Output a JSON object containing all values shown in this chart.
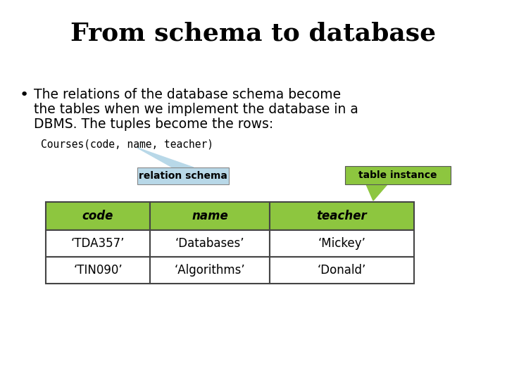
{
  "title": "From schema to database",
  "bullet_lines": [
    "The relations of the database schema become",
    "the tables when we implement the database in a",
    "DBMS. The tuples become the rows:"
  ],
  "code_text": "Courses(code, name, teacher)",
  "label1": "relation schema",
  "label2": "table instance",
  "label1_color": "#b8d8e8",
  "label2_color": "#8dc63f",
  "table_header_color": "#8dc63f",
  "table_border_color": "#444444",
  "table_headers": [
    "code",
    "name",
    "teacher"
  ],
  "table_rows": [
    [
      "‘TDA357’",
      "‘Databases’",
      "‘Mickey’"
    ],
    [
      "‘TIN090’",
      "‘Algorithms’",
      "‘Donald’"
    ]
  ],
  "bg_color": "#ffffff",
  "title_fontsize": 26,
  "body_fontsize": 13.5,
  "code_fontsize": 10.5,
  "table_fontsize": 12,
  "label_fontsize": 10
}
